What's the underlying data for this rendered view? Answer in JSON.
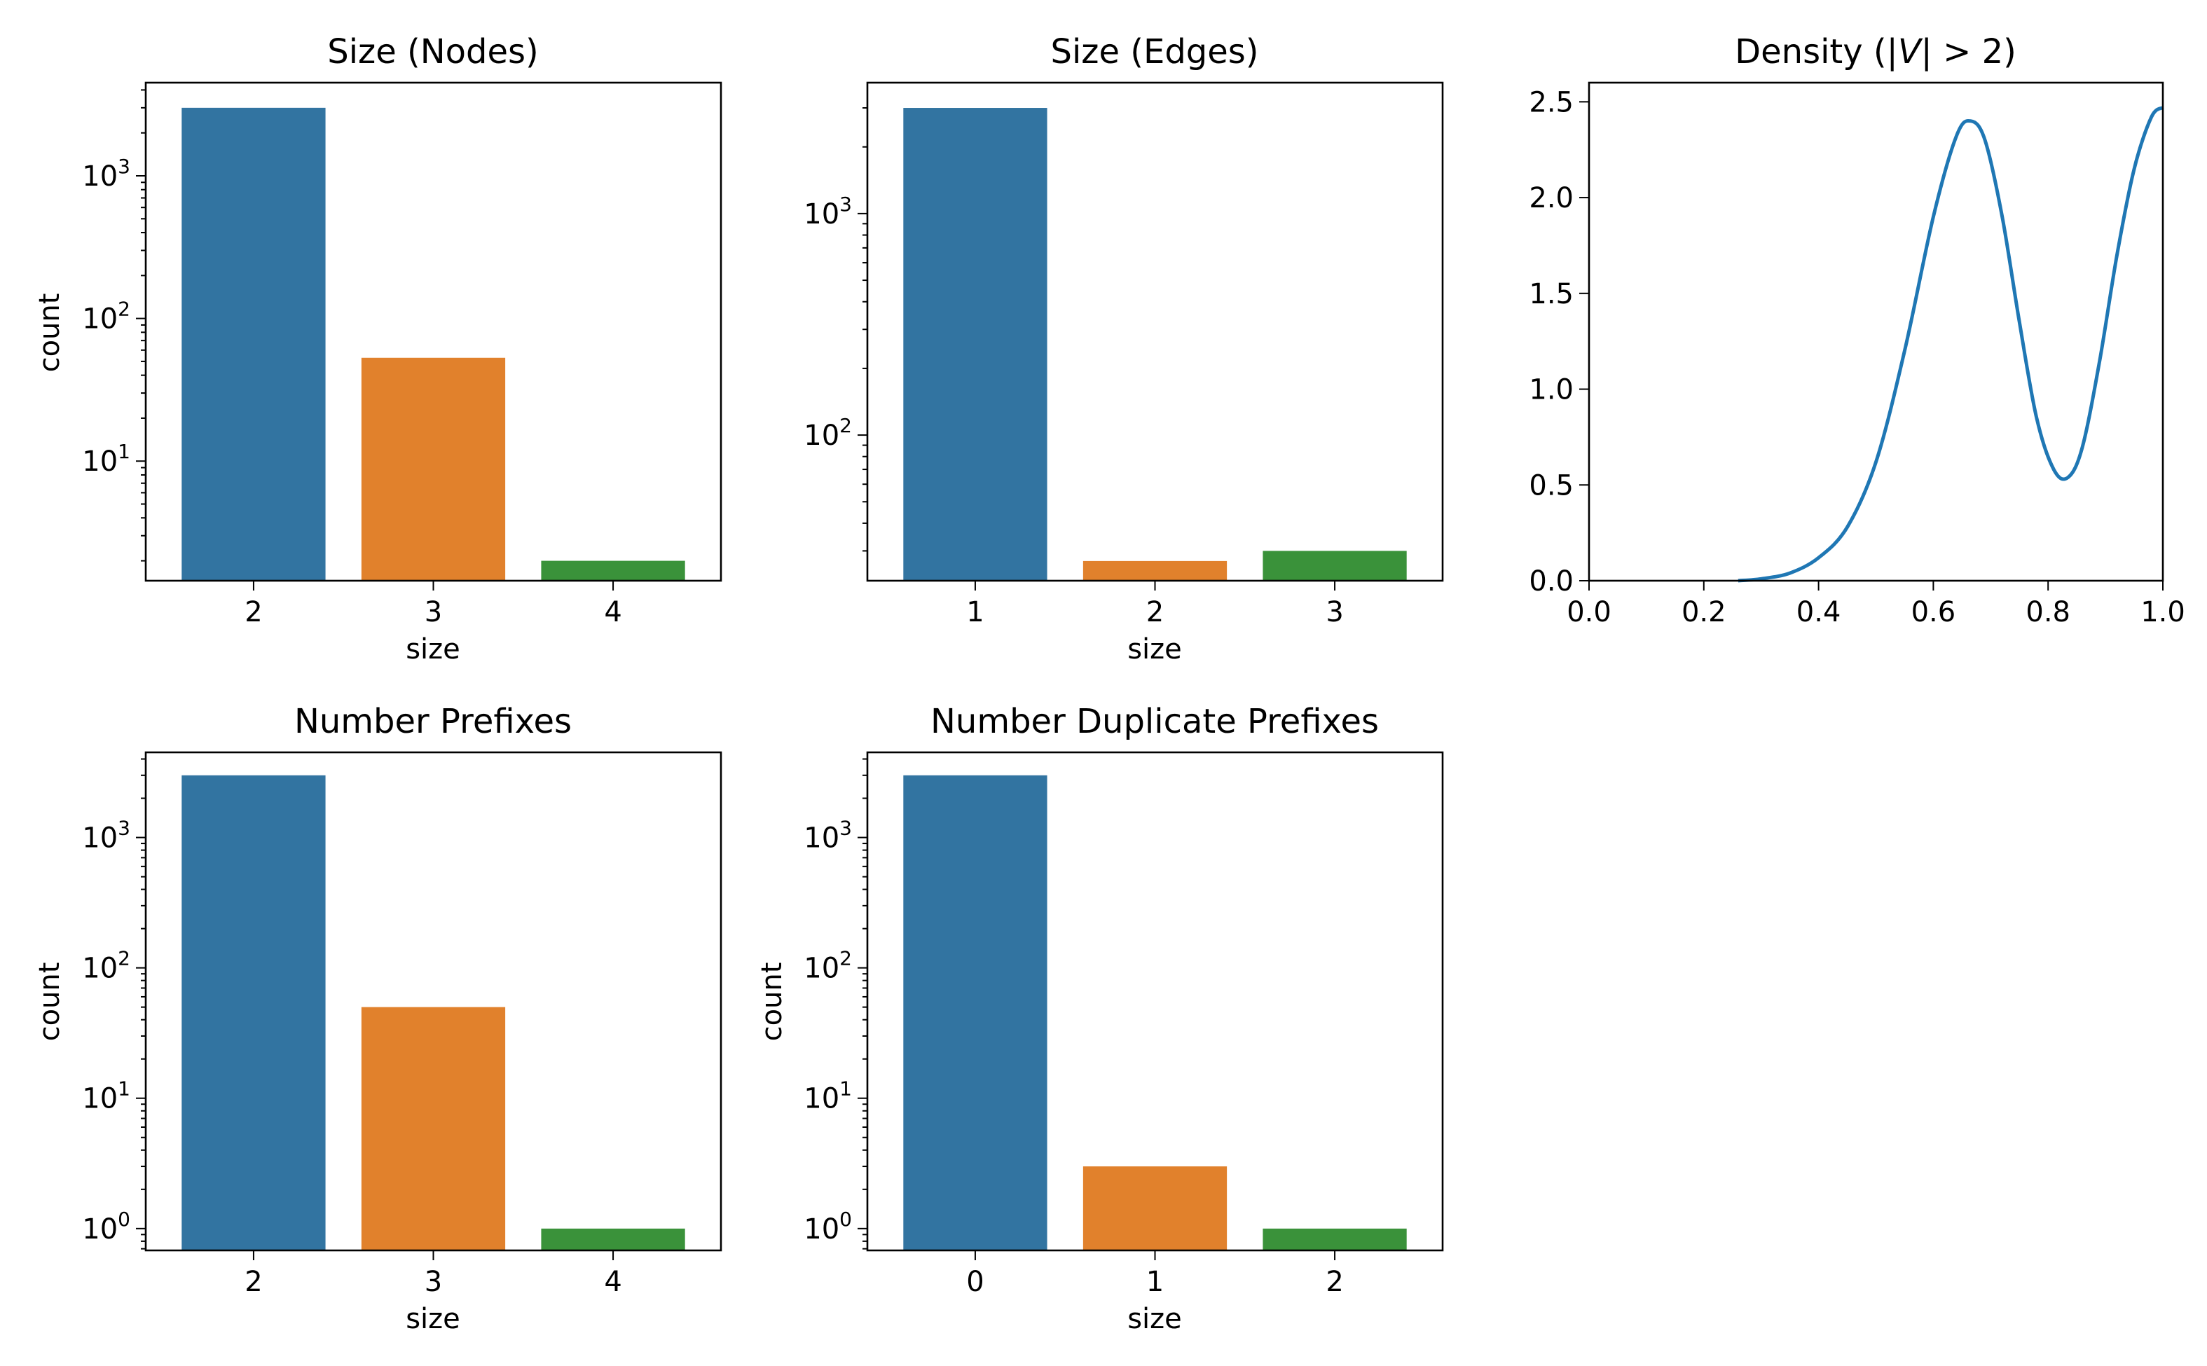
{
  "chart_data": [
    {
      "type": "bar",
      "title": "Size (Nodes)",
      "xlabel": "size",
      "ylabel": "count",
      "yscale": "log",
      "ylim": [
        1.45,
        4500
      ],
      "ytick_values": [
        10,
        100,
        1000
      ],
      "ytick_base": "10",
      "ytick_exponents": [
        "1",
        "2",
        "3"
      ],
      "categories": [
        "2",
        "3",
        "4"
      ],
      "values": [
        3000,
        53,
        2
      ],
      "colors": [
        "#3274a1",
        "#e1812c",
        "#3a923a"
      ]
    },
    {
      "type": "bar",
      "title": "Size (Edges)",
      "xlabel": "size",
      "ylabel": "",
      "yscale": "log",
      "ylim": [
        22,
        3900
      ],
      "ytick_values": [
        100,
        1000
      ],
      "ytick_base": "10",
      "ytick_exponents": [
        "2",
        "3"
      ],
      "categories": [
        "1",
        "2",
        "3"
      ],
      "values": [
        3000,
        27,
        30
      ],
      "colors": [
        "#3274a1",
        "#e1812c",
        "#3a923a"
      ]
    },
    {
      "type": "line",
      "title": "Density (|V| > 2)",
      "title_parts": [
        "Density (|",
        "V",
        "| > 2)"
      ],
      "xlabel": "",
      "ylabel": "",
      "xlim": [
        0.0,
        1.0
      ],
      "ylim": [
        0.0,
        2.6
      ],
      "xticks": [
        "0.0",
        "0.2",
        "0.4",
        "0.6",
        "0.8",
        "1.0"
      ],
      "yticks": [
        "0.0",
        "0.5",
        "1.0",
        "1.5",
        "2.0",
        "2.5"
      ],
      "x": [
        0.26,
        0.3,
        0.35,
        0.4,
        0.45,
        0.5,
        0.55,
        0.6,
        0.64,
        0.665,
        0.69,
        0.72,
        0.75,
        0.78,
        0.81,
        0.835,
        0.86,
        0.89,
        0.92,
        0.95,
        0.98,
        1.0
      ],
      "y": [
        0.0,
        0.01,
        0.04,
        0.12,
        0.28,
        0.62,
        1.2,
        1.9,
        2.32,
        2.4,
        2.3,
        1.9,
        1.35,
        0.85,
        0.58,
        0.54,
        0.7,
        1.15,
        1.7,
        2.15,
        2.42,
        2.47
      ],
      "color": "#1f77b4"
    },
    {
      "type": "bar",
      "title": "Number Prefixes",
      "xlabel": "size",
      "ylabel": "count",
      "yscale": "log",
      "ylim": [
        0.68,
        4500
      ],
      "ytick_values": [
        1,
        10,
        100,
        1000
      ],
      "ytick_base": "10",
      "ytick_exponents": [
        "0",
        "1",
        "2",
        "3"
      ],
      "categories": [
        "2",
        "3",
        "4"
      ],
      "values": [
        3000,
        50,
        1
      ],
      "colors": [
        "#3274a1",
        "#e1812c",
        "#3a923a"
      ]
    },
    {
      "type": "bar",
      "title": "Number Duplicate Prefixes",
      "xlabel": "size",
      "ylabel": "count",
      "yscale": "log",
      "ylim": [
        0.68,
        4500
      ],
      "ytick_values": [
        1,
        10,
        100,
        1000
      ],
      "ytick_base": "10",
      "ytick_exponents": [
        "0",
        "1",
        "2",
        "3"
      ],
      "categories": [
        "0",
        "1",
        "2"
      ],
      "values": [
        3000,
        3,
        1
      ],
      "colors": [
        "#3274a1",
        "#e1812c",
        "#3a923a"
      ]
    }
  ]
}
